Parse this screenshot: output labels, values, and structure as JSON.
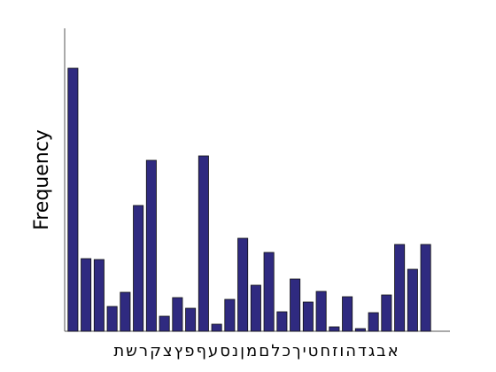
{
  "chart_data": {
    "type": "bar",
    "ylabel": "Frequency",
    "xlabel": "אבגדהוזחטיךכלםמןנסעףפץצקרשת",
    "values": [
      297,
      82,
      81,
      28,
      44,
      142,
      193,
      17,
      38,
      26,
      198,
      8,
      36,
      105,
      52,
      89,
      22,
      59,
      33,
      45,
      5,
      39,
      3,
      21,
      41,
      98,
      70,
      98
    ],
    "color": "#2f2a80",
    "ylim": [
      0,
      342
    ]
  }
}
